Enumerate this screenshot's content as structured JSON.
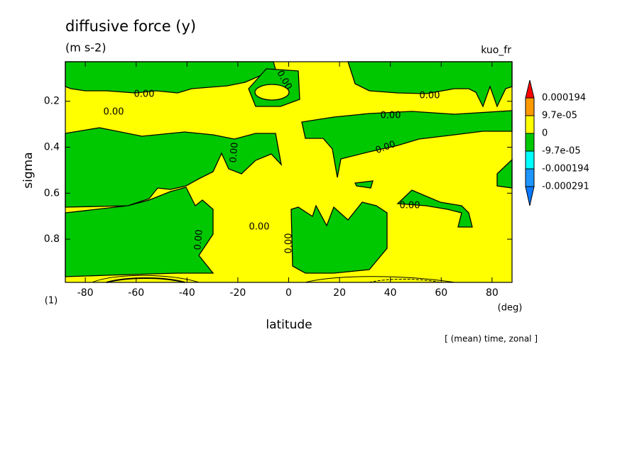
{
  "title": "diffusive force (y)",
  "units": "(m s-2)",
  "variable": "kuo_fr",
  "note": "[ (mean) time, zonal ]",
  "chart_data": {
    "type": "contour",
    "x_label": "latitude",
    "x_unit": "(deg)",
    "y_label": "sigma",
    "y_unit": "(1)",
    "xlim": [
      -87.86,
      87.86
    ],
    "xticks": [
      -80,
      -60,
      -40,
      -20,
      0,
      20,
      40,
      60,
      80
    ],
    "ylim": [
      0.028,
      0.988
    ],
    "y_reversed": true,
    "yticks": [
      0.2,
      0.4,
      0.6,
      0.8
    ],
    "contour_labels": [
      "0.00",
      "0.00",
      "0.00",
      "0.00",
      "0.00",
      "0.00",
      "0.00",
      "0.00",
      "0.00",
      "0.00",
      "0.00"
    ],
    "colorbar": {
      "levels": [
        -0.000291,
        -0.000194,
        {
          "value": -9.7e-05,
          "label": "-9.7e-05"
        },
        0,
        {
          "value": 9.7e-05,
          "label": "9.7e-05"
        },
        0.000194
      ],
      "colors": [
        "#0a78ff",
        "#1e96ff",
        "#00ffff",
        "#00c800",
        "#ffff00",
        "#ff9900",
        "#ff0000"
      ]
    }
  }
}
